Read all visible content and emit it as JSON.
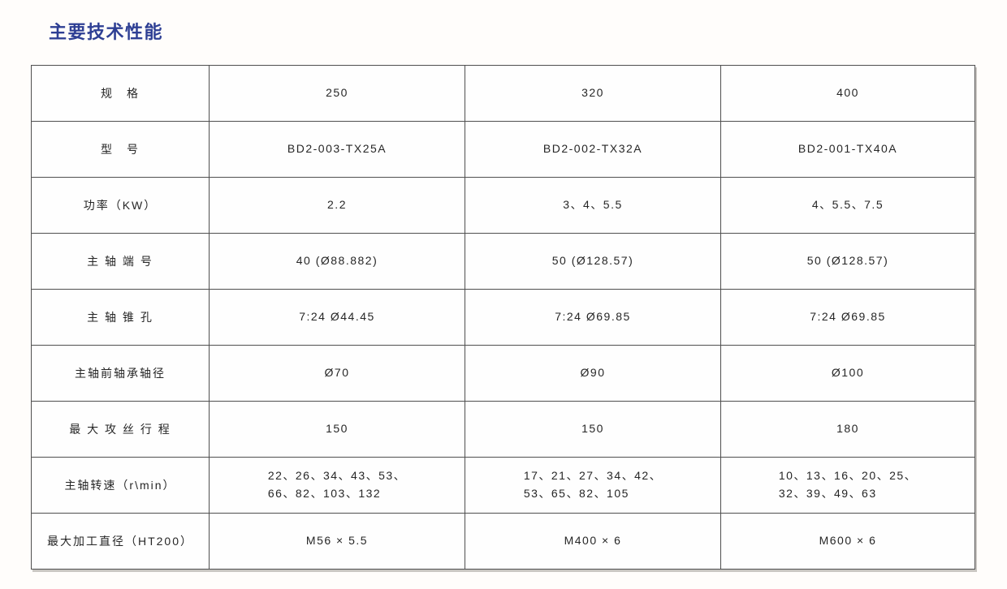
{
  "page": {
    "background": "#fffdfb"
  },
  "title": {
    "text": "主要技术性能",
    "color": "#2e3f94"
  },
  "table": {
    "border_color": "#4f4f4f",
    "columns": 4,
    "rows": [
      {
        "label": "规　格",
        "values": [
          "250",
          "320",
          "400"
        ]
      },
      {
        "label": "型　号",
        "values": [
          "BD2-003-TX25A",
          "BD2-002-TX32A",
          "BD2-001-TX40A"
        ]
      },
      {
        "label": "功率（KW）",
        "values": [
          "2.2",
          "3、4、5.5",
          "4、5.5、7.5"
        ]
      },
      {
        "label": "主 轴 端 号",
        "values": [
          "40 (Ø88.882)",
          "50 (Ø128.57)",
          "50 (Ø128.57)"
        ]
      },
      {
        "label": "主 轴 锥 孔",
        "values": [
          "7:24 Ø44.45",
          "7:24 Ø69.85",
          "7:24 Ø69.85"
        ]
      },
      {
        "label": "主轴前轴承轴径",
        "values": [
          "Ø70",
          "Ø90",
          "Ø100"
        ]
      },
      {
        "label": "最 大 攻 丝 行 程",
        "values": [
          "150",
          "150",
          "180"
        ]
      },
      {
        "label": "主轴转速（r\\min）",
        "values": [
          "22、26、34、43、53、\n66、82、103、132",
          "17、21、27、34、42、\n53、65、82、105",
          "10、13、16、20、25、\n32、39、49、63"
        ]
      },
      {
        "label": "最大加工直径（HT200）",
        "values": [
          "M56 × 5.5",
          "M400 × 6",
          "M600 × 6"
        ]
      }
    ]
  }
}
